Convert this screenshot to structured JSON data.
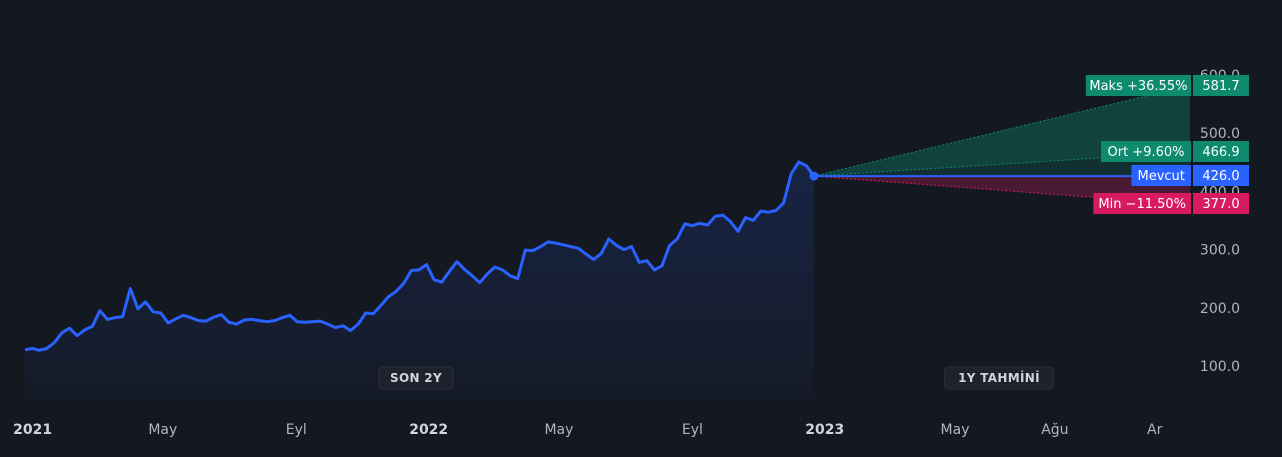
{
  "chart_data": {
    "type": "line",
    "title": "",
    "xlabel": "",
    "ylabel": "",
    "ylim": [
      30,
      620
    ],
    "y_ticks": [
      100,
      200,
      300,
      400,
      500,
      600
    ],
    "y_tick_labels": [
      "100.0",
      "200.0",
      "300.0",
      "400.0",
      "500.0",
      "600.0"
    ],
    "x_ticks": [
      {
        "date": "2021-01-01",
        "label": "2021",
        "bold": true
      },
      {
        "date": "2021-05-01",
        "label": "May",
        "bold": false
      },
      {
        "date": "2021-09-01",
        "label": "Eyl",
        "bold": false
      },
      {
        "date": "2022-01-01",
        "label": "2022",
        "bold": true
      },
      {
        "date": "2022-05-01",
        "label": "May",
        "bold": false
      },
      {
        "date": "2022-09-01",
        "label": "Eyl",
        "bold": false
      },
      {
        "date": "2023-01-01",
        "label": "2023",
        "bold": true
      },
      {
        "date": "2023-05-01",
        "label": "May",
        "bold": false
      },
      {
        "date": "2023-08-01",
        "label": "Ağu",
        "bold": false
      },
      {
        "date": "2023-11-01",
        "label": "Ar",
        "bold": false
      }
    ],
    "section_labels": {
      "past": "SON 2Y",
      "forecast": "1Y TAHMİNİ"
    },
    "series": [
      {
        "values": [
          [
            "2020-12-25",
            128
          ],
          [
            "2021-01-01",
            130
          ],
          [
            "2021-01-07",
            127
          ],
          [
            "2021-01-14",
            130
          ],
          [
            "2021-01-21",
            140
          ],
          [
            "2021-01-28",
            157
          ],
          [
            "2021-02-04",
            165
          ],
          [
            "2021-02-11",
            152
          ],
          [
            "2021-02-18",
            162
          ],
          [
            "2021-02-25",
            168
          ],
          [
            "2021-03-04",
            195
          ],
          [
            "2021-03-11",
            180
          ],
          [
            "2021-03-18",
            183
          ],
          [
            "2021-03-25",
            185
          ],
          [
            "2021-04-01",
            233
          ],
          [
            "2021-04-08",
            198
          ],
          [
            "2021-04-15",
            210
          ],
          [
            "2021-04-22",
            193
          ],
          [
            "2021-04-29",
            191
          ],
          [
            "2021-05-06",
            174
          ],
          [
            "2021-05-13",
            181
          ],
          [
            "2021-05-20",
            187
          ],
          [
            "2021-05-27",
            183
          ],
          [
            "2021-06-03",
            178
          ],
          [
            "2021-06-10",
            177
          ],
          [
            "2021-06-17",
            184
          ],
          [
            "2021-06-24",
            188
          ],
          [
            "2021-07-01",
            175
          ],
          [
            "2021-07-08",
            172
          ],
          [
            "2021-07-15",
            179
          ],
          [
            "2021-07-22",
            180
          ],
          [
            "2021-07-29",
            178
          ],
          [
            "2021-08-05",
            176
          ],
          [
            "2021-08-12",
            178
          ],
          [
            "2021-08-19",
            183
          ],
          [
            "2021-08-26",
            187
          ],
          [
            "2021-09-02",
            176
          ],
          [
            "2021-09-09",
            175
          ],
          [
            "2021-09-16",
            176
          ],
          [
            "2021-09-23",
            177
          ],
          [
            "2021-09-30",
            172
          ],
          [
            "2021-10-07",
            166
          ],
          [
            "2021-10-14",
            169
          ],
          [
            "2021-10-21",
            161
          ],
          [
            "2021-10-28",
            172
          ],
          [
            "2021-11-04",
            191
          ],
          [
            "2021-11-11",
            190
          ],
          [
            "2021-11-18",
            204
          ],
          [
            "2021-11-25",
            219
          ],
          [
            "2021-12-02",
            228
          ],
          [
            "2021-12-09",
            242
          ],
          [
            "2021-12-16",
            264
          ],
          [
            "2021-12-23",
            265
          ],
          [
            "2021-12-30",
            274
          ],
          [
            "2022-01-06",
            248
          ],
          [
            "2022-01-13",
            244
          ],
          [
            "2022-01-20",
            262
          ],
          [
            "2022-01-27",
            279
          ],
          [
            "2022-02-03",
            266
          ],
          [
            "2022-02-10",
            255
          ],
          [
            "2022-02-17",
            243
          ],
          [
            "2022-02-24",
            258
          ],
          [
            "2022-03-03",
            270
          ],
          [
            "2022-03-10",
            265
          ],
          [
            "2022-03-17",
            255
          ],
          [
            "2022-03-24",
            250
          ],
          [
            "2022-03-31",
            299
          ],
          [
            "2022-04-07",
            298
          ],
          [
            "2022-04-14",
            305
          ],
          [
            "2022-04-21",
            313
          ],
          [
            "2022-04-28",
            311
          ],
          [
            "2022-05-05",
            308
          ],
          [
            "2022-05-12",
            305
          ],
          [
            "2022-05-19",
            302
          ],
          [
            "2022-05-26",
            292
          ],
          [
            "2022-06-02",
            283
          ],
          [
            "2022-06-09",
            293
          ],
          [
            "2022-06-16",
            318
          ],
          [
            "2022-06-23",
            307
          ],
          [
            "2022-06-30",
            300
          ],
          [
            "2022-07-07",
            305
          ],
          [
            "2022-07-14",
            278
          ],
          [
            "2022-07-21",
            281
          ],
          [
            "2022-07-28",
            265
          ],
          [
            "2022-08-04",
            272
          ],
          [
            "2022-08-11",
            307
          ],
          [
            "2022-08-18",
            318
          ],
          [
            "2022-08-25",
            344
          ],
          [
            "2022-09-01",
            341
          ],
          [
            "2022-09-08",
            345
          ],
          [
            "2022-09-15",
            342
          ],
          [
            "2022-09-22",
            357
          ],
          [
            "2022-09-29",
            359
          ],
          [
            "2022-10-06",
            348
          ],
          [
            "2022-10-13",
            331
          ],
          [
            "2022-10-20",
            355
          ],
          [
            "2022-10-27",
            350
          ],
          [
            "2022-11-03",
            366
          ],
          [
            "2022-11-10",
            364
          ],
          [
            "2022-11-17",
            367
          ],
          [
            "2022-11-24",
            380
          ],
          [
            "2022-12-01",
            430
          ],
          [
            "2022-12-08",
            450
          ],
          [
            "2022-12-15",
            444
          ],
          [
            "2022-12-22",
            426
          ]
        ]
      }
    ],
    "forecast": {
      "start_date": "2022-12-22",
      "end_date": "2023-12-22",
      "start_value": 426.0,
      "max": {
        "label": "Maks +36.55%",
        "value": 581.7,
        "display": "581.7"
      },
      "avg": {
        "label": "Ort +9.60%",
        "value": 466.9,
        "display": "466.9"
      },
      "current": {
        "label": "Mevcut",
        "value": 426.0,
        "display": "426.0"
      },
      "min": {
        "label": "Min −11.50%",
        "value": 377.0,
        "display": "377.0"
      }
    },
    "x_range": [
      "2020-12-25",
      "2023-11-28"
    ],
    "grid": false,
    "colors": {
      "line": "#2962ff",
      "max": "#0e8a6f",
      "avg": "#0e8a6f",
      "current": "#2962ff",
      "min": "#d81b60",
      "tick": "#b2b5be",
      "background": "#141821"
    }
  }
}
